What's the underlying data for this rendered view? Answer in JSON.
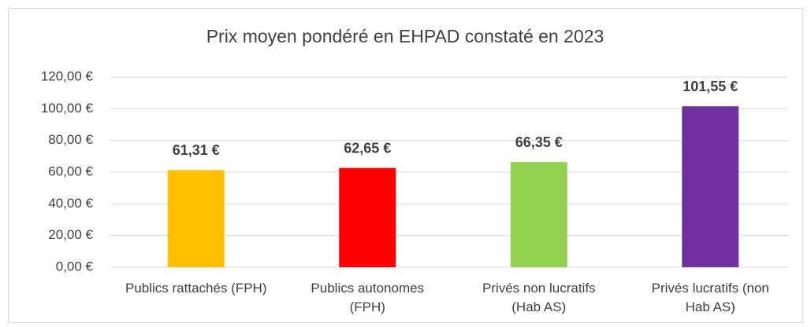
{
  "chart_data": {
    "type": "bar",
    "title": "Prix moyen pondéré en EHPAD constaté en 2023",
    "categories": [
      "Publics rattachés (FPH)",
      "Publics autonomes (FPH)",
      "Privés non lucratifs (Hab AS)",
      "Privés lucratifs (non Hab AS)"
    ],
    "values": [
      61.31,
      62.65,
      66.35,
      101.55
    ],
    "value_labels": [
      "61,31 €",
      "62,65 €",
      "66,35 €",
      "101,55 €"
    ],
    "colors": [
      "#ffc000",
      "#ff0000",
      "#92d050",
      "#7030a0"
    ],
    "ylim": [
      0,
      120
    ],
    "yticks": [
      {
        "value": 0,
        "label": "0,00 €"
      },
      {
        "value": 20,
        "label": "20,00 €"
      },
      {
        "value": 40,
        "label": "40,00 €"
      },
      {
        "value": 60,
        "label": "60,00 €"
      },
      {
        "value": 80,
        "label": "80,00 €"
      },
      {
        "value": 100,
        "label": "100,00 €"
      },
      {
        "value": 120,
        "label": "120,00 €"
      }
    ],
    "grid": true
  }
}
